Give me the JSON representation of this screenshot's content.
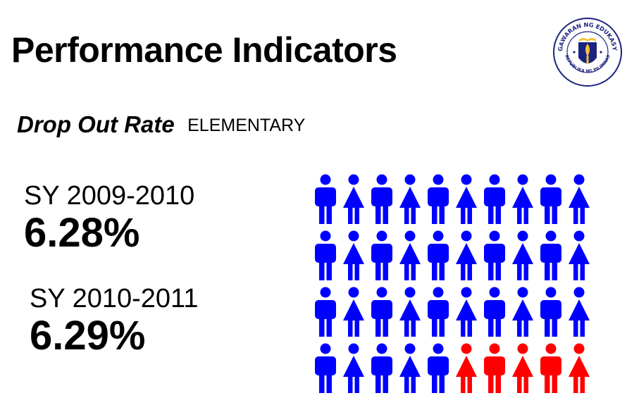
{
  "title": "Performance Indicators",
  "subtitle": {
    "main": "Drop Out Rate",
    "level": "ELEMENTARY"
  },
  "stats": [
    {
      "label": "SY 2009-2010",
      "value": "6.28%"
    },
    {
      "label": "SY 2010-2011",
      "value": "6.29%"
    }
  ],
  "seal": {
    "top_text": "KAGAWARAN NG EDUKASYON",
    "bottom_text": "REPUBLIKA NG PILIPINAS"
  },
  "people_grid": {
    "rows": 4,
    "columns": 10,
    "highlighted_count": 5,
    "base_color": "#0000ff",
    "highlight_color": "#ff0000"
  },
  "colors": {
    "seal_blue": "#1a237e",
    "seal_gold": "#f3c13a"
  }
}
